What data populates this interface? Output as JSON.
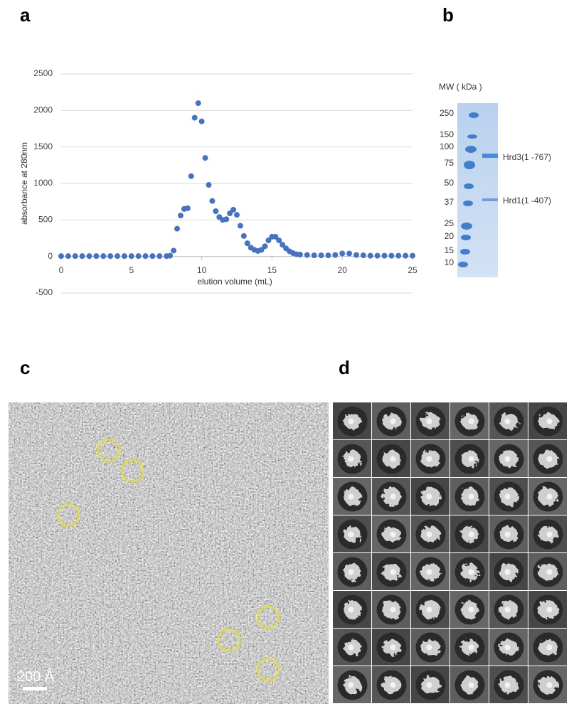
{
  "panel_labels": [
    "a",
    "b",
    "c",
    "d"
  ],
  "chart_data": {
    "type": "scatter",
    "xlabel": "elution volume  (mL)",
    "ylabel": "absorbance  at 280nm",
    "color": "#4472c4",
    "grid": true,
    "xlim": [
      0,
      25
    ],
    "ylim": [
      -500,
      2500
    ],
    "xticks": [
      0,
      5,
      10,
      15,
      20,
      25
    ],
    "yticks": [
      -500,
      0,
      500,
      1000,
      1500,
      2000,
      2500
    ],
    "x": [
      0,
      0.5,
      1,
      1.5,
      2,
      2.5,
      3,
      3.5,
      4,
      4.5,
      5,
      5.5,
      6,
      6.5,
      7,
      7.5,
      7.75,
      8,
      8.25,
      8.5,
      8.75,
      9,
      9.25,
      9.5,
      9.75,
      10,
      10.25,
      10.5,
      10.75,
      11,
      11.25,
      11.5,
      11.75,
      12,
      12.25,
      12.5,
      12.75,
      13,
      13.25,
      13.5,
      13.75,
      14,
      14.25,
      14.5,
      14.75,
      15,
      15.25,
      15.5,
      15.75,
      16,
      16.25,
      16.5,
      16.75,
      17,
      17.5,
      18,
      18.5,
      19,
      19.5,
      20,
      20.5,
      21,
      21.5,
      22,
      22.5,
      23,
      23.5,
      24,
      24.5,
      25
    ],
    "values": [
      5,
      5,
      5,
      5,
      5,
      5,
      5,
      5,
      5,
      5,
      5,
      5,
      5,
      5,
      5,
      5,
      10,
      80,
      380,
      560,
      650,
      660,
      1100,
      1900,
      2100,
      1850,
      1350,
      980,
      760,
      620,
      540,
      500,
      510,
      590,
      640,
      570,
      420,
      280,
      180,
      120,
      90,
      75,
      90,
      140,
      220,
      270,
      270,
      220,
      160,
      110,
      70,
      45,
      30,
      25,
      20,
      15,
      15,
      15,
      20,
      40,
      40,
      20,
      15,
      10,
      10,
      10,
      10,
      10,
      10,
      10
    ]
  },
  "gel": {
    "mw_label": "MW ( kDa )",
    "markers": [
      250,
      150,
      100,
      75,
      50,
      37,
      25,
      20,
      15,
      10
    ],
    "bands": [
      "Hrd3(1 -767)",
      "Hrd1(1 -407)"
    ]
  },
  "micrograph": {
    "scale_bar": "200 Å"
  }
}
